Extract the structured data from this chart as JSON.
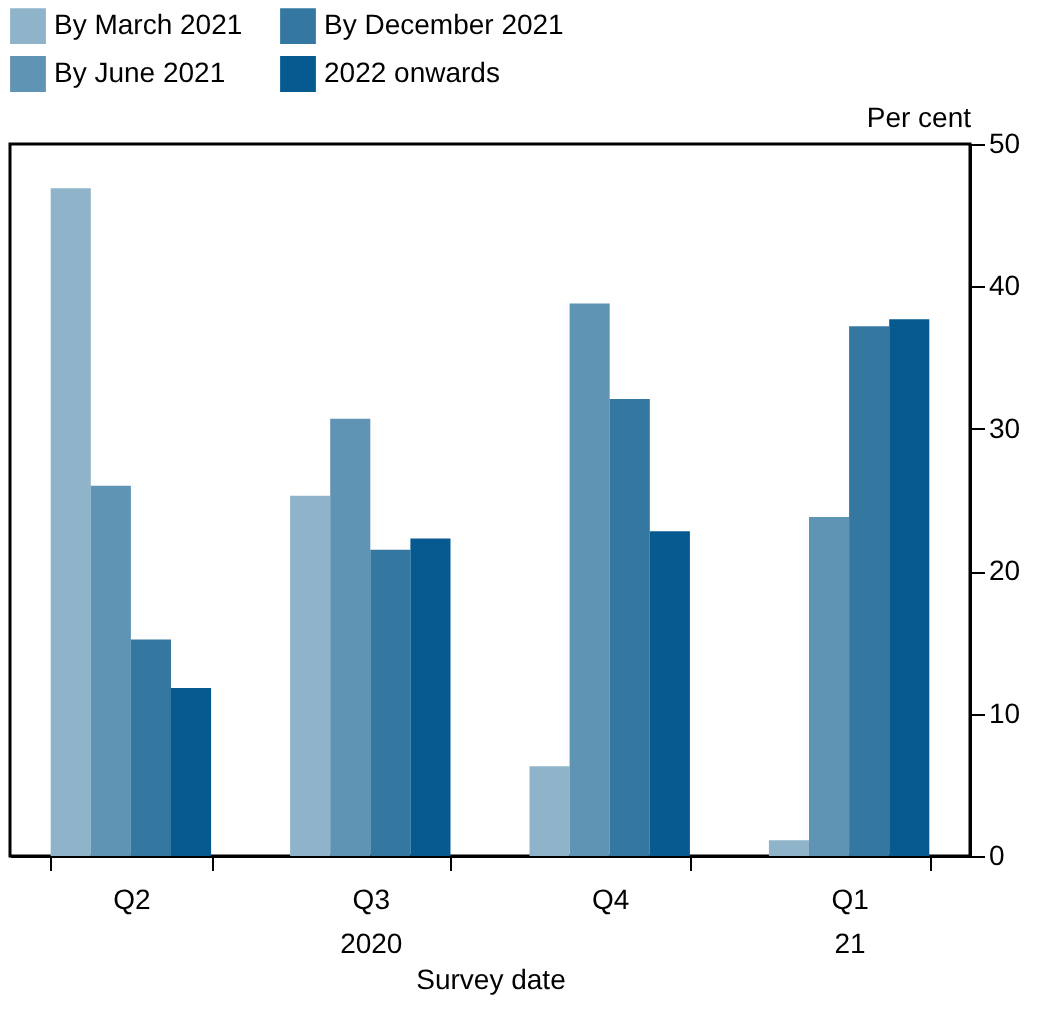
{
  "chart_data": {
    "type": "bar",
    "xlabel": "Survey date",
    "ylabel": "Per cent",
    "categories": [
      "Q2",
      "Q3\n2020",
      "Q4",
      "Q1\n21"
    ],
    "series": [
      {
        "name": "By March 2021",
        "color": "#8fb3c9",
        "values": [
          46.9,
          25.3,
          6.3,
          1.1
        ]
      },
      {
        "name": "By June 2021",
        "color": "#5f94b5",
        "values": [
          26.0,
          30.7,
          38.8,
          23.8
        ]
      },
      {
        "name": "By December 2021",
        "color": "#3477a0",
        "values": [
          15.2,
          21.5,
          32.1,
          37.2
        ]
      },
      {
        "name": "2022 onwards",
        "color": "#065a8f",
        "values": [
          11.8,
          22.3,
          22.8,
          37.7
        ]
      }
    ],
    "ylim": [
      0,
      50
    ],
    "yticks": [
      0,
      10,
      20,
      30,
      40,
      50
    ],
    "grid": false,
    "legend": "top left"
  }
}
